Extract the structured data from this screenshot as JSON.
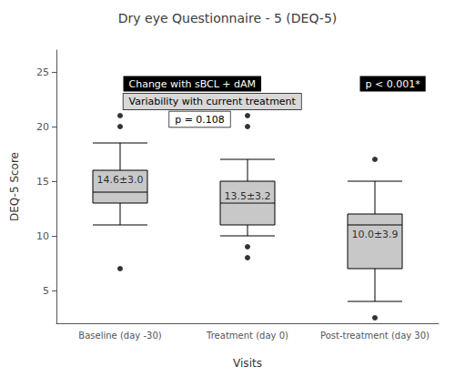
{
  "chart_data": {
    "type": "box",
    "title": "Dry eye Questionnaire - 5 (DEQ-5)",
    "xlabel": "Visits",
    "ylabel": "DEQ-5 Score",
    "categories": [
      "Baseline (day -30)",
      "Treatment (day 0)",
      "Post-treatment (day 30)"
    ],
    "boxes": [
      {
        "q1": 13.0,
        "median": 14.0,
        "q3": 16.0,
        "whislo": 11.0,
        "whishi": 18.5,
        "fliers": [
          7.0,
          20.0,
          21.0
        ],
        "mean_label": "14.6±3.0"
      },
      {
        "q1": 11.0,
        "median": 13.0,
        "q3": 15.0,
        "whislo": 10.0,
        "whishi": 17.0,
        "fliers": [
          8.0,
          9.0,
          20.0,
          21.0
        ],
        "mean_label": "13.5±3.2"
      },
      {
        "q1": 7.0,
        "median": 11.0,
        "q3": 12.0,
        "whislo": 4.0,
        "whishi": 15.0,
        "fliers": [
          2.5,
          17.0
        ],
        "mean_label": "10.0±3.9"
      }
    ],
    "color": "#c8c8c8",
    "marker": "circle",
    "ylim": [
      2,
      27
    ],
    "yticks": [
      5,
      10,
      15,
      20,
      25
    ],
    "grid": false,
    "annotations": [
      {
        "text": "Change with sBCL + dAM",
        "color": "#000000"
      },
      {
        "text": "Variability with current treatment",
        "color": "#d8d8d8"
      },
      {
        "text": "p = 0.108",
        "color": "#ffffff"
      },
      {
        "text": "p < 0.001*",
        "color": "#000000"
      }
    ]
  }
}
